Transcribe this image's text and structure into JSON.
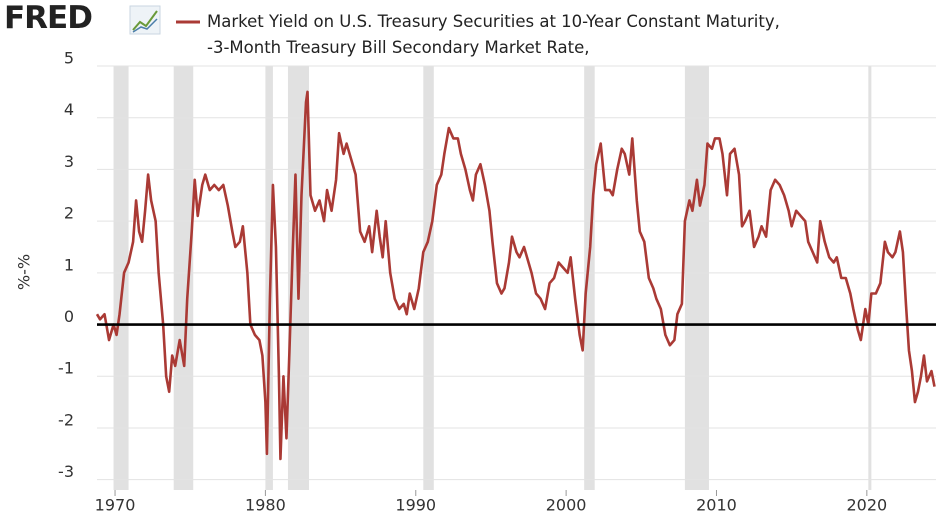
{
  "chart_data": {
    "type": "line",
    "brand": "FRED",
    "y_label": "%-%",
    "xlim": [
      1968.8,
      2024.6
    ],
    "xticks": [
      1970,
      1980,
      1990,
      2000,
      2010,
      2020
    ],
    "ylim": [
      -3.2,
      5
    ],
    "yticks": [
      -3,
      -2,
      -1,
      0,
      1,
      2,
      3,
      4,
      5
    ],
    "grid": true,
    "zero_line": true,
    "recession_color": "#e1e1e1",
    "recessions": [
      [
        1969.9,
        1970.9
      ],
      [
        1973.9,
        1975.2
      ],
      [
        1980.0,
        1980.5
      ],
      [
        1981.5,
        1982.9
      ],
      [
        1990.5,
        1991.2
      ],
      [
        2001.2,
        2001.9
      ],
      [
        2007.9,
        2009.5
      ],
      [
        2020.1,
        2020.3
      ]
    ],
    "x": [
      1968.8,
      1969.0,
      1969.3,
      1969.6,
      1969.9,
      1970.1,
      1970.3,
      1970.6,
      1970.9,
      1971.2,
      1971.4,
      1971.6,
      1971.8,
      1972.0,
      1972.2,
      1972.4,
      1972.7,
      1972.9,
      1973.2,
      1973.4,
      1973.6,
      1973.8,
      1974.0,
      1974.3,
      1974.6,
      1974.8,
      1975.1,
      1975.3,
      1975.5,
      1975.8,
      1976.0,
      1976.3,
      1976.6,
      1976.9,
      1977.2,
      1977.5,
      1977.8,
      1978.0,
      1978.3,
      1978.5,
      1978.8,
      1979.0,
      1979.3,
      1979.6,
      1979.8,
      1980.0,
      1980.1,
      1980.3,
      1980.5,
      1980.7,
      1980.9,
      1981.0,
      1981.2,
      1981.4,
      1981.6,
      1981.8,
      1982.0,
      1982.2,
      1982.4,
      1982.7,
      1982.8,
      1983.0,
      1983.3,
      1983.6,
      1983.9,
      1984.1,
      1984.4,
      1984.7,
      1984.9,
      1985.2,
      1985.4,
      1985.7,
      1986.0,
      1986.3,
      1986.6,
      1986.9,
      1987.1,
      1987.4,
      1987.6,
      1987.8,
      1988.0,
      1988.3,
      1988.6,
      1988.9,
      1989.2,
      1989.4,
      1989.6,
      1989.9,
      1990.2,
      1990.5,
      1990.8,
      1991.1,
      1991.4,
      1991.7,
      1991.9,
      1992.2,
      1992.5,
      1992.8,
      1993.0,
      1993.3,
      1993.6,
      1993.8,
      1994.0,
      1994.3,
      1994.6,
      1994.9,
      1995.1,
      1995.4,
      1995.7,
      1995.9,
      1996.2,
      1996.4,
      1996.7,
      1996.9,
      1997.2,
      1997.5,
      1997.7,
      1998.0,
      1998.3,
      1998.6,
      1998.9,
      1999.2,
      1999.5,
      1999.8,
      2000.1,
      2000.3,
      2000.6,
      2000.9,
      2001.1,
      2001.3,
      2001.6,
      2001.8,
      2002.0,
      2002.3,
      2002.6,
      2002.9,
      2003.1,
      2003.4,
      2003.7,
      2003.9,
      2004.2,
      2004.4,
      2004.7,
      2004.9,
      2005.2,
      2005.5,
      2005.8,
      2006.0,
      2006.3,
      2006.6,
      2006.9,
      2007.2,
      2007.4,
      2007.7,
      2007.9,
      2008.2,
      2008.4,
      2008.7,
      2008.9,
      2009.2,
      2009.4,
      2009.7,
      2009.9,
      2010.2,
      2010.4,
      2010.7,
      2010.9,
      2011.2,
      2011.5,
      2011.7,
      2011.9,
      2012.2,
      2012.5,
      2012.8,
      2013.0,
      2013.3,
      2013.6,
      2013.9,
      2014.2,
      2014.5,
      2014.8,
      2015.0,
      2015.3,
      2015.6,
      2015.9,
      2016.1,
      2016.4,
      2016.7,
      2016.9,
      2017.2,
      2017.5,
      2017.8,
      2018.0,
      2018.3,
      2018.6,
      2018.9,
      2019.1,
      2019.4,
      2019.6,
      2019.9,
      2020.1,
      2020.3,
      2020.6,
      2020.9,
      2021.2,
      2021.4,
      2021.7,
      2021.9,
      2022.2,
      2022.4,
      2022.6,
      2022.8,
      2023.0,
      2023.2,
      2023.4,
      2023.6,
      2023.8,
      2024.0,
      2024.3,
      2024.5
    ],
    "series": [
      {
        "name": "Market Yield on U.S. Treasury Securities at 10-Year Constant Maturity,\n-3-Month Treasury Bill Secondary Market Rate,",
        "color": "#aa3a35",
        "values": [
          0.2,
          0.1,
          0.2,
          -0.3,
          0.0,
          -0.2,
          0.2,
          1.0,
          1.2,
          1.6,
          2.4,
          1.8,
          1.6,
          2.2,
          2.9,
          2.4,
          2.0,
          1.0,
          0.0,
          -1.0,
          -1.3,
          -0.6,
          -0.8,
          -0.3,
          -0.8,
          0.5,
          1.8,
          2.8,
          2.1,
          2.7,
          2.9,
          2.6,
          2.7,
          2.6,
          2.7,
          2.3,
          1.8,
          1.5,
          1.6,
          1.9,
          1.0,
          0.0,
          -0.2,
          -0.3,
          -0.6,
          -1.5,
          -2.5,
          0.5,
          2.7,
          1.5,
          -1.0,
          -2.6,
          -1.0,
          -2.2,
          -0.5,
          1.3,
          2.9,
          0.5,
          2.5,
          4.3,
          4.5,
          2.5,
          2.2,
          2.4,
          2.0,
          2.6,
          2.2,
          2.8,
          3.7,
          3.3,
          3.5,
          3.2,
          2.9,
          1.8,
          1.6,
          1.9,
          1.4,
          2.2,
          1.7,
          1.3,
          2.0,
          1.0,
          0.5,
          0.3,
          0.4,
          0.2,
          0.6,
          0.3,
          0.7,
          1.4,
          1.6,
          2.0,
          2.7,
          2.9,
          3.3,
          3.8,
          3.6,
          3.6,
          3.3,
          3.0,
          2.6,
          2.4,
          2.9,
          3.1,
          2.7,
          2.2,
          1.6,
          0.8,
          0.6,
          0.7,
          1.2,
          1.7,
          1.4,
          1.3,
          1.5,
          1.2,
          1.0,
          0.6,
          0.5,
          0.3,
          0.8,
          0.9,
          1.2,
          1.1,
          1.0,
          1.3,
          0.5,
          -0.2,
          -0.5,
          0.6,
          1.5,
          2.5,
          3.1,
          3.5,
          2.6,
          2.6,
          2.5,
          3.0,
          3.4,
          3.3,
          2.9,
          3.6,
          2.4,
          1.8,
          1.6,
          0.9,
          0.7,
          0.5,
          0.3,
          -0.2,
          -0.4,
          -0.3,
          0.2,
          0.4,
          2.0,
          2.4,
          2.2,
          2.8,
          2.3,
          2.7,
          3.5,
          3.4,
          3.6,
          3.6,
          3.3,
          2.5,
          3.3,
          3.4,
          2.9,
          1.9,
          2.0,
          2.2,
          1.5,
          1.7,
          1.9,
          1.7,
          2.6,
          2.8,
          2.7,
          2.5,
          2.2,
          1.9,
          2.2,
          2.1,
          2.0,
          1.6,
          1.4,
          1.2,
          2.0,
          1.6,
          1.3,
          1.2,
          1.3,
          0.9,
          0.9,
          0.6,
          0.3,
          -0.1,
          -0.3,
          0.3,
          0.0,
          0.6,
          0.6,
          0.8,
          1.6,
          1.4,
          1.3,
          1.4,
          1.8,
          1.4,
          0.4,
          -0.5,
          -0.9,
          -1.5,
          -1.3,
          -1.0,
          -0.6,
          -1.1,
          -0.9,
          -1.2
        ]
      }
    ]
  }
}
